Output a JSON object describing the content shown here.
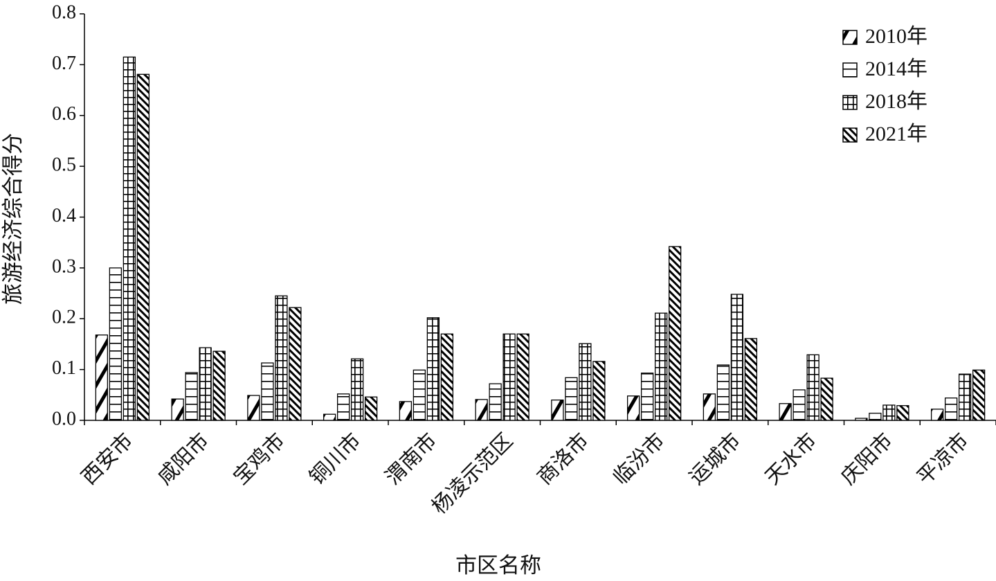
{
  "chart_data": {
    "type": "bar",
    "x_label": "市区名称",
    "y_label": "旅游经济综合得分",
    "categories": [
      "西安市",
      "咸阳市",
      "宝鸡市",
      "铜川市",
      "渭南市",
      "杨凌示范区",
      "商洛市",
      "临汾市",
      "运城市",
      "天水市",
      "庆阳市",
      "平凉市"
    ],
    "series": [
      {
        "name": "2010年",
        "color": "#000000",
        "pattern": "diagonal",
        "values": [
          0.168,
          0.042,
          0.049,
          0.012,
          0.037,
          0.041,
          0.04,
          0.048,
          0.052,
          0.033,
          0.004,
          0.022
        ]
      },
      {
        "name": "2014年",
        "color": "#000000",
        "pattern": "horizontal",
        "values": [
          0.3,
          0.094,
          0.113,
          0.052,
          0.099,
          0.072,
          0.084,
          0.093,
          0.109,
          0.06,
          0.014,
          0.044
        ]
      },
      {
        "name": "2018年",
        "color": "#000000",
        "pattern": "grid",
        "values": [
          0.715,
          0.143,
          0.245,
          0.121,
          0.202,
          0.17,
          0.151,
          0.211,
          0.248,
          0.129,
          0.03,
          0.091
        ]
      },
      {
        "name": "2021年",
        "color": "#000000",
        "pattern": "backdiagonal",
        "values": [
          0.681,
          0.136,
          0.222,
          0.046,
          0.17,
          0.17,
          0.116,
          0.342,
          0.161,
          0.083,
          0.029,
          0.099
        ]
      }
    ],
    "ylim": [
      0,
      0.8
    ],
    "yticks": [
      {
        "value": 0,
        "label": "0.0"
      },
      0.1,
      0.2,
      0.3,
      0.4,
      0.5,
      0.6,
      0.7,
      0.8
    ],
    "legend": "top-right"
  }
}
